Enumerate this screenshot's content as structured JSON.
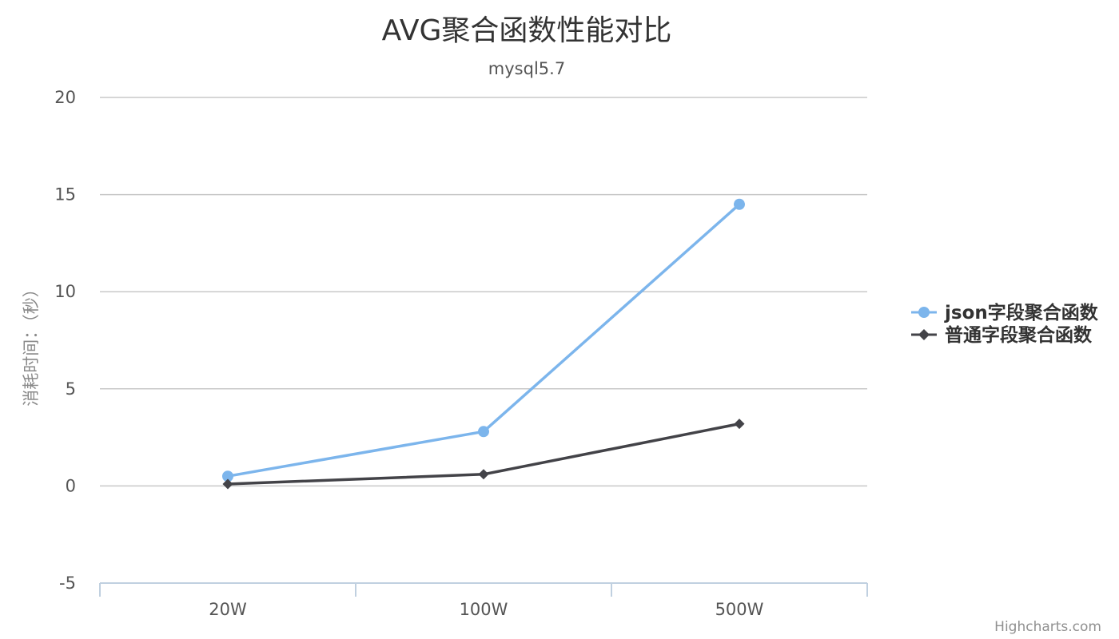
{
  "chart_data": {
    "type": "line",
    "title": "AVG聚合函数性能对比",
    "subtitle": "mysql5.7",
    "ylabel": "消耗时间：（秒）",
    "categories": [
      "20W",
      "100W",
      "500W"
    ],
    "ylim": [
      -5,
      20
    ],
    "yticks": [
      20,
      15,
      10,
      5,
      0,
      -5
    ],
    "grid": true,
    "legend_position": "right",
    "series": [
      {
        "name": "json字段聚合函数",
        "color": "#7cb5ec",
        "marker": "circle",
        "values": [
          0.5,
          2.8,
          14.5
        ]
      },
      {
        "name": "普通字段聚合函数",
        "color": "#434348",
        "marker": "diamond",
        "values": [
          0.1,
          0.6,
          3.2
        ]
      }
    ]
  },
  "credits": "Highcharts.com"
}
